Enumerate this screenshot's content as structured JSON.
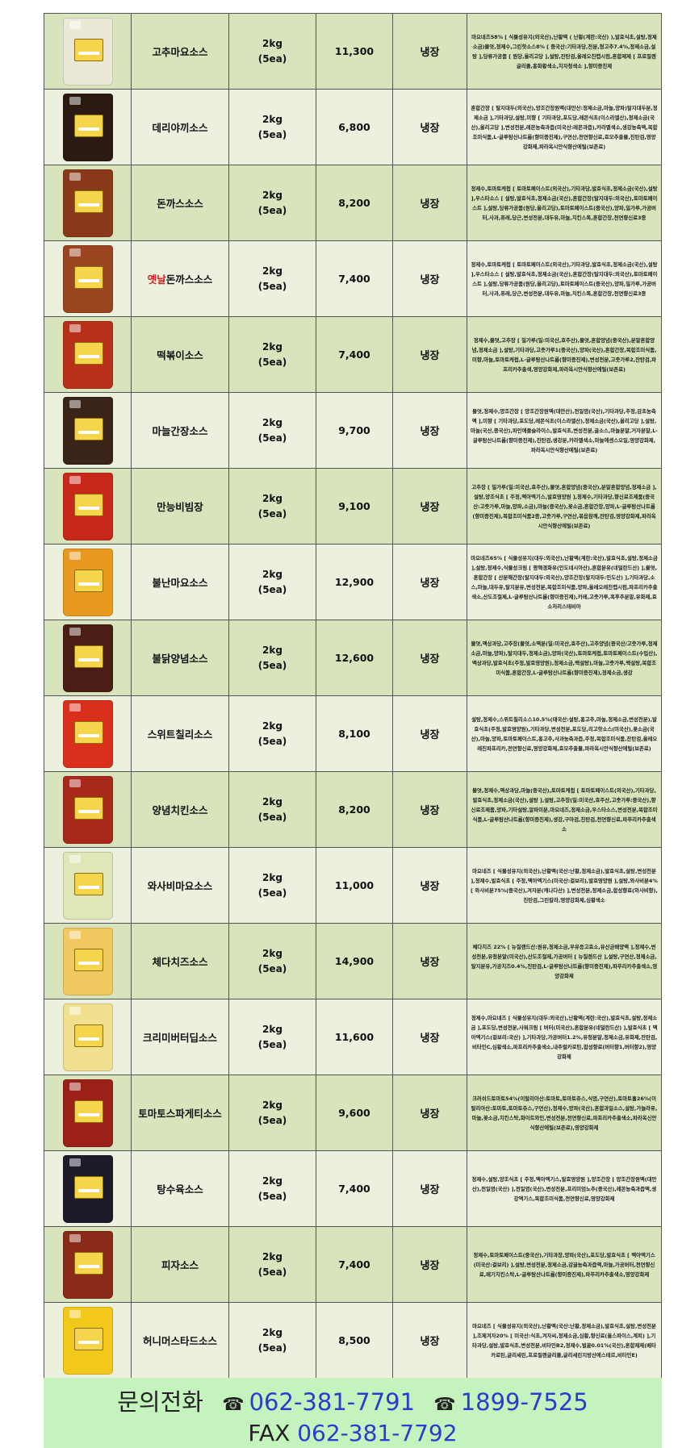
{
  "products": [
    {
      "name": "고추마요소스",
      "size": "2kg",
      "pack": "(5ea)",
      "price": "11,300",
      "storage": "냉장",
      "color": "#ece8d6",
      "ingredients": "마요네즈58% [ 식물성유지(외국산),난황액 ( 난황(계란:국산) ),발효식초,설탕,정제소금)물엿,정제수,그린핫소스8% [ 중국산:기타과당,전분,청고추7.4%,정제소금,설탕 ],당류가공품 [ 원당,올리고당 ],설탕,잔탄검,올레오진캡시컴,혼합제제 [ 프로필렌글리콜,홍화황색소,치자청색소 ],향미증진제"
    },
    {
      "name": "데리야끼소스",
      "size": "2kg",
      "pack": "(5ea)",
      "price": "6,800",
      "storage": "냉장",
      "color": "#2a1a12",
      "ingredients": "혼합간장 [ 탈지대두(외국산),양조간장원액(대만산:정제소금,마늘,양파)탈지대두분,정제소금 ],기타과당,설탕,미향 [ 기타과당,포도당,레몬식초(이스라엘산),정제소금(국산),올리고당 ],변성전분,레몬농축과즙(미국산:레몬과즙),카라멜색소,생강농축액,복합조미식품,L-글루탐산나트륨(향미증진제),구연산,천연향신료,효모추출물,진탄검,영양강화제,파라옥시안식향산에틸(보존료)"
    },
    {
      "name": "돈까스소스",
      "size": "2kg",
      "pack": "(5ea)",
      "price": "8,200",
      "storage": "냉장",
      "color": "#8a3a1a",
      "ingredients": "정제수,토마토케첩 [ 토마토페이스트(외국산),기타과당,발효식초,정제소금(국산),설탕 ],우스타소스 [ 설탕,발효식초,정제소금(국산),혼합간장(탈지대두:외국산),토마토페이스트 ],설탕,당류가공품(원당,올리고당),토마토페이스트(중국산),양파,밀가루,가공버터,사과,퓨레,당근,변성전분,대두유,마늘,치킨스톡,혼합간장,천연향신료3종"
    },
    {
      "name_red": "옛날",
      "name": "돈까스소스",
      "size": "2kg",
      "pack": "(5ea)",
      "price": "7,400",
      "storage": "냉장",
      "color": "#9a4420",
      "ingredients": "정제수,토마토케첩 [ 토마토페이스트(외국산),기타과당,발효식초,정제소금(국산),설탕 ],우스타소스 [ 설탕,발효식초,정제소금(국산),혼합간장(탈지대두:외국산),토마토페이스트 ],설탕,당류가공품(원당,올리고당),토마토페이스트(중국산),양파,밀가루,가공버터,사과,퓨레,당근,변성전분,대두유,마늘,치킨스톡,혼합간장,천연향신료3종"
    },
    {
      "name": "떡볶이소스",
      "size": "2kg",
      "pack": "(5ea)",
      "price": "7,400",
      "storage": "냉장",
      "color": "#b8301a",
      "ingredients": "정제수,물엿,고추장 [ 밀가루(밀:미국산,호주산),물엿,혼합양념(중국산),분말혼합양념,정제소금 ],설탕,기타과당,고춧가루1(중국산),양파(국산),혼합간장,복합조미식품,미향,마늘,토마토케첩,L-글루탐산나트륨(향미증진제),변성전분,고춧가루2,잔탄검,파프리카추출색,영양강화제,파라옥시안식향산에틸(보존료)"
    },
    {
      "name": "마늘간장소스",
      "size": "2kg",
      "pack": "(5ea)",
      "price": "9,700",
      "storage": "냉장",
      "color": "#3a2418",
      "ingredients": "물엿,정제수,양조간장 [ 양조간장원액(대만산),천일염(국산),기타과당,주정,감초농축액 ],미향 [ 기타과당,포도당,레몬식초(이스라엘산),정제소금(국산),올리고당 ],설탕,마늘(국산,중국산),파인애플슬라이스,발효식초,변성전분,굴소스,마늘분말,거자분말,L-글루탐산나트륨(향미증진제),진탄검,생강분,카라멜색소,마늘에센스오일,영양강화제,파라옥시안식향산에틸(보존료)"
    },
    {
      "name": "만능비빔장",
      "size": "2kg",
      "pack": "(5ea)",
      "price": "9,100",
      "storage": "냉장",
      "color": "#c8281a",
      "ingredients": "고추장 [ 밀가루(밀:미국산,호주산),물엿,혼합양념(중국산),분말혼합양념,정제소금 ],설탕,양조식초 [ 주정,맥아엑기스,발효영양원 ],정제수,기타과당,향신료조제품(중국산:고춧가루,마늘,양파,소금),마늘(중국산),꽃소금,혼합간장,양파,L-글루탐산나트륨(향미증진제),복합조미식품2종,고춧가루,구연산,볶음참깨,잔탄검,영양강화제,파라옥시안식향산에틸(보존료)"
    },
    {
      "name": "불난마요소스",
      "size": "2kg",
      "pack": "(5ea)",
      "price": "12,900",
      "storage": "냉장",
      "color": "#e89a20",
      "ingredients": "마요네즈65% [ 식물성유지(대두:외국산),난황액(계란:국산),발효식초,설탕,정제소금 ],설탕,정제수,식물성크림 [ 팜핵경화유(인도네시아산),혼합분유(네덜란드산) ],물엿,혼합간장 [ 산분해간장(탈지대두:외국산),양조간장(탈지대두:인도산) ],기타과당,소스,마늘,대두유,탈지분유,변성전분,복합조미식품,양파,올레오레진캡시컴,파프리카추출색소,산도조절제,L-글루탐산나트륨(향미증진제),카레,고춧가루,흑후추분말,유화제,효소처리스테비아"
    },
    {
      "name": "불닭양념소스",
      "size": "2kg",
      "pack": "(5ea)",
      "price": "12,600",
      "storage": "냉장",
      "color": "#4a1e14",
      "ingredients": "물엿,액상과당,고추장(물엿,소맥분(밀:미국산,호주산),고추양념(중국산/고춧가루,정제소금,마늘,양파),탈지대두,정제소금),양파(국산),토마토케첩,토마토페이스트(수입산),액상과당,발효식초(주정,발효영양원),정제소금,백설탕),마늘,고춧가루,백설탕,복합조미식품,혼합간장,L-글루탐산나트륨(향미증진제),정제소금,생강"
    },
    {
      "name": "스위트칠리소스",
      "size": "2kg",
      "pack": "(5ea)",
      "price": "8,100",
      "storage": "냉장",
      "color": "#d8301c",
      "ingredients": "설탕,정제수,스위트칠리소스10.5%(태국산:설탕,홍고추,마늘,정제소금,변성전분),발효식초(주정,발효영양원),기타과당,변성전분,포도당,리고핫소스(미국산),꽃소금(국산),마늘,양파,토마토페이스트,홍고추,사과농축과즙,주정,복합조미식품,잔탄검,올레오레진파프리카,천연향신료,영양강화제,효모추출물,파라옥시안식향산에틸(보존료)"
    },
    {
      "name": "양념치킨소스",
      "size": "2kg",
      "pack": "(5ea)",
      "price": "8,200",
      "storage": "냉장",
      "color": "#a8281a",
      "ingredients": "물엿,정제수,액상과당,마늘(중국산),토마토케첩 [ 토마토페이스트(외국산),기타과당,발효식초,정제소금(국산),설탕 ],설탕,고추장(밀:미국산,호주산,고춧가루:중국산),향신료조제품,양파,기타설탕,알파미분,마요네즈,정제소금,우스타소스,변성전분,복합조미식품,L-글루탐산나트륨(향미증진제),생강,구아검,진탄검,천연향신료,파푸리카추출색소"
    },
    {
      "name": "와사비마요소스",
      "size": "2kg",
      "pack": "(5ea)",
      "price": "11,000",
      "storage": "냉장",
      "color": "#dfe6b8",
      "ingredients": "마요네즈 [ 식물성유지(외국산),난황액(국산:난황,정제소금),발효식초,설탕,변성전분 ],정제수,발효식초 [ 주정,맥아엑기스(미국산:겉보리),발효영양원 ],설탕,와사비분4% [ 와사비분75%(중국산),겨자분(캐나다산) ],변성전분,정제소금,합성향료(와사비향),진탄검,그린칼라,영양강화제,심황색소"
    },
    {
      "name": "체다치즈소스",
      "size": "2kg",
      "pack": "(5ea)",
      "price": "14,900",
      "storage": "냉장",
      "color": "#f2c860",
      "ingredients": "체다치즈 22% [ 뉴질랜드산:원유,정제소금,우유응고효소,유산균배양액 ],정제수,변성전분,유청분말(미국산),산도조절제,가공버터 [ 뉴질랜드산 ],설탕,구연산,정제소금,탈지분유,가공치즈0.4%,진탄검,L-글루탐산나트륨(향미증진제),파푸리카추출색소,영양강화제"
    },
    {
      "name": "크리미버터딥소스",
      "size": "2kg",
      "pack": "(5ea)",
      "price": "11,600",
      "storage": "냉장",
      "color": "#f0e090",
      "ingredients": "정제수,마요네즈 [ 식물성유지(대두:외국산),난황액(계란:국산),발효식초,설탕,정제소금 ],포도당,변성전분,사워크림 [ 버터(미국산),혼합분유(네덜란드산) ],발효식초 [ 맥아엑기스(겉보리:국산) ],기타과당,가공버터1.2%,유청분말,정제소금,유화제,잔탄검,비타민C,심황색소,파프리카추출색소,내추럴카로틴,합성향료(버터향1,버터향2),영양강화제"
    },
    {
      "name": "토마토스파게티소스",
      "size": "2kg",
      "pack": "(5ea)",
      "price": "9,600",
      "storage": "냉장",
      "color": "#9a2018",
      "ingredients": "크러쉬드토마토54%(이탈리아산:토마토,토마토쥬스,식염,구연산),토마토홀26%(이탈리아산:토마토,토마토쥬스,구연산),정제수,양파(국산),혼합과일소스,설탕,가늘라유,마늘,꽃소금,치킨스탁,화이트와인,변성전분,천연향신료,파프리카추출색소,파라옥신안식향산에틸(보존료),영양강화제"
    },
    {
      "name": "탕수육소스",
      "size": "2kg",
      "pack": "(5ea)",
      "price": "7,400",
      "storage": "냉장",
      "color": "#1e1a2a",
      "ingredients": "정제수,설탕,양조식초 [ 주정,맥아엑기스,발효영양원 ],양조간장 [ 양조간장원액(대만산),천일염(국산) ],천일염(국산),변성전분,프리미엄노추(중국산),레몬농축과즙액,생강엑기스,복합조미식품,천연향신료,영양강화제"
    },
    {
      "name": "피자소스",
      "size": "2kg",
      "pack": "(5ea)",
      "price": "7,400",
      "storage": "냉장",
      "color": "#8a2a18",
      "ingredients": "정제수,토마토페이스트(중국산),기타과장,양파(국산),포도당,발효식초 [ 맥아엑기스(미국산:겉보리) ],설탕,변성전분,정제소금,감귤농축과즙액,마늘,가공버터,천연향신료,메기치킨스탁,L-글루탐산나트륨(향미증진제),파푸리카추출색소,영양강화제"
    },
    {
      "name": "허니머스타드소스",
      "size": "2kg",
      "pack": "(5ea)",
      "price": "8,500",
      "storage": "냉장",
      "color": "#f2c81a",
      "ingredients": "마요네즈 [ 식물성유지(외국산),난황액(국산:난황,정제소금),발효식초,설탕,변성전분 ],조제겨자20% [ 미국산:식초,겨자씨,정제소금,심황,향신료(올스파이스,계피) ],기타과당,설탕,발효식초,변성전분,비타민B2,정제수,벌꿀0.01%(국산),혼합제제(베타카로틴,글리세린,프로필렌글리콜,글리세린지방산에스테르,비타민E)"
    }
  ],
  "footer": {
    "inquiry_label": "문의전화",
    "phone_icon": "telephone-icon",
    "phone1": "062-381-7791",
    "phone2": "1899-7525",
    "fax_label": "FAX",
    "fax": "062-381-7792"
  },
  "colors": {
    "row_odd": "#d8e4bc",
    "row_even": "#ebf1de",
    "footer_bg": "#c4f3bd",
    "phone_blue": "#2a3bd0",
    "highlight_red": "#d42020"
  }
}
